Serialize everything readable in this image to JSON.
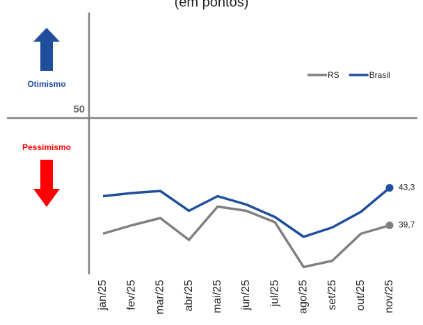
{
  "chart_data": {
    "type": "line",
    "title": "(em pontos)",
    "categories": [
      "jan/25",
      "fev/25",
      "mar/25",
      "abr/25",
      "mai/25",
      "jun/25",
      "jul/25",
      "ago/25",
      "set/25",
      "out/25",
      "nov/25"
    ],
    "series": [
      {
        "name": "RS",
        "color": "#808080",
        "values": [
          38.9,
          39.7,
          40.4,
          38.3,
          41.5,
          41.1,
          40.0,
          35.7,
          36.3,
          38.9,
          39.7
        ],
        "value_labels": [
          null,
          null,
          null,
          null,
          null,
          null,
          null,
          null,
          null,
          null,
          "39,7"
        ]
      },
      {
        "name": "Brasil",
        "color": "#1f4e9c",
        "values": [
          42.5,
          42.8,
          43.0,
          41.1,
          42.5,
          41.7,
          40.5,
          38.6,
          39.5,
          41.0,
          43.3
        ],
        "value_labels": [
          null,
          null,
          null,
          null,
          null,
          null,
          null,
          null,
          null,
          null,
          "43,3"
        ]
      }
    ],
    "ylim": [
      35,
      60
    ],
    "yticks": [
      50
    ],
    "annotations": [
      {
        "text": "Otimismo",
        "color": "#1f4e9c"
      },
      {
        "text": "Pessimismo",
        "color": "#ff0000"
      }
    ],
    "legend": "top-right"
  }
}
